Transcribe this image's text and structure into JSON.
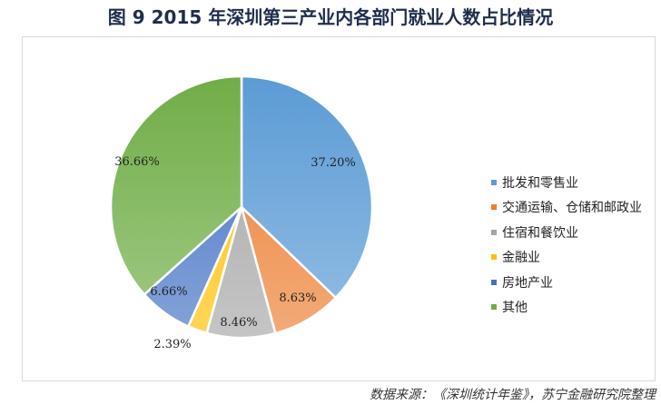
{
  "title": "图 9  2015 年深圳第三产业内各部门就业人数占比情况",
  "source": "数据来源：《深圳统计年鉴》，苏宁金融研究院整理",
  "chart_data": {
    "type": "pie",
    "title": "图 9  2015 年深圳第三产业内各部门就业人数占比情况",
    "legend_position": "right",
    "slices": [
      {
        "label": "批发和零售业",
        "value": 37.2,
        "value_label": "37.20%",
        "color": "#5b9bd5"
      },
      {
        "label": "交通运输、仓储和邮政业",
        "value": 8.63,
        "value_label": "8.63%",
        "color": "#ed7d31"
      },
      {
        "label": "住宿和餐饮业",
        "value": 8.46,
        "value_label": "8.46%",
        "color": "#a5a5a5"
      },
      {
        "label": "金融业",
        "value": 2.39,
        "value_label": "2.39%",
        "color": "#ffc000"
      },
      {
        "label": "房地产业",
        "value": 6.66,
        "value_label": "6.66%",
        "color": "#4472c4"
      },
      {
        "label": "其他",
        "value": 36.66,
        "value_label": "36.66%",
        "color": "#70ad47"
      }
    ]
  }
}
